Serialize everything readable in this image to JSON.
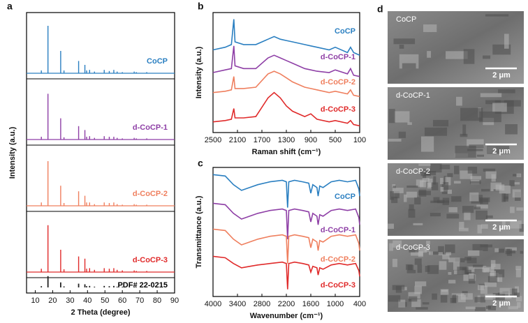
{
  "chart_data": [
    {
      "type": "xrd",
      "panel": "a",
      "xlabel": "2 Theta (degree)",
      "ylabel": "Intensity (a.u.)",
      "xlim": [
        5,
        90
      ],
      "xticks": [
        10,
        20,
        30,
        40,
        50,
        60,
        70,
        80,
        90
      ],
      "ylim": [
        0,
        100
      ],
      "x": [
        13.5,
        17.3,
        24.6,
        26.5,
        34.9,
        38.5,
        39.5,
        41.2,
        44,
        49.6,
        52.5,
        55.1,
        57,
        60,
        66.8,
        68,
        74
      ],
      "series": [
        {
          "name": "CoCP",
          "color": "#2a7fc1",
          "values": [
            5,
            85,
            40,
            5,
            22,
            15,
            5,
            6,
            3,
            6,
            4,
            6,
            3,
            2,
            3,
            2,
            2
          ]
        },
        {
          "name": "d-CoCP-1",
          "color": "#8e3fa6",
          "values": [
            5,
            82,
            38,
            4,
            24,
            17,
            5,
            6,
            3,
            6,
            5,
            5,
            3,
            2,
            3,
            2,
            2
          ]
        },
        {
          "name": "d-CoCP-2",
          "color": "#ef7f5e",
          "values": [
            6,
            80,
            36,
            5,
            26,
            18,
            6,
            6,
            3,
            6,
            5,
            6,
            3,
            2,
            3,
            2,
            2
          ]
        },
        {
          "name": "d-CoCP-3",
          "color": "#e02a2a",
          "values": [
            6,
            84,
            40,
            5,
            28,
            24,
            6,
            7,
            4,
            7,
            6,
            7,
            4,
            3,
            3,
            2,
            2
          ]
        },
        {
          "name": "PDF# 22-0215",
          "color": "#222222",
          "values": [
            10,
            90,
            40,
            8,
            30,
            25,
            10,
            12,
            6,
            12,
            10,
            12,
            6,
            5,
            6,
            4,
            4
          ]
        }
      ]
    },
    {
      "type": "line",
      "panel": "b",
      "xlabel": "Raman shift (cm⁻¹)",
      "ylabel": "Intensity (a.u.)",
      "xlim": [
        2500,
        100
      ],
      "xticks": [
        2500,
        2100,
        1700,
        1300,
        900,
        500,
        100
      ],
      "ylim": [
        10,
        100
      ],
      "x": [
        2500,
        2300,
        2200,
        2160,
        2140,
        2000,
        1800,
        1600,
        1500,
        1400,
        1300,
        1200,
        1000,
        900,
        800,
        600,
        500,
        300,
        250,
        200,
        100
      ],
      "series": [
        {
          "name": "CoCP",
          "color": "#2a7fc1",
          "values": [
            72,
            74,
            76,
            95,
            78,
            76,
            76,
            80,
            82,
            80,
            79,
            78,
            76,
            75,
            74,
            72,
            74,
            70,
            74,
            70,
            68
          ]
        },
        {
          "name": "d-CoCP-1",
          "color": "#8e3fa6",
          "values": [
            55,
            57,
            58,
            75,
            60,
            58,
            58,
            66,
            68,
            66,
            64,
            62,
            58,
            57,
            56,
            55,
            57,
            54,
            58,
            53,
            52
          ]
        },
        {
          "name": "d-CoCP-2",
          "color": "#ef7f5e",
          "values": [
            40,
            41,
            42,
            52,
            43,
            43,
            44,
            54,
            56,
            54,
            51,
            48,
            44,
            43,
            42,
            40,
            41,
            39,
            42,
            38,
            37
          ]
        },
        {
          "name": "d-CoCP-3",
          "color": "#e02a2a",
          "values": [
            18,
            19,
            20,
            28,
            21,
            21,
            22,
            36,
            40,
            36,
            30,
            26,
            22,
            24,
            20,
            18,
            19,
            17,
            19,
            16,
            15
          ]
        }
      ]
    },
    {
      "type": "line",
      "panel": "c",
      "xlabel": "Wavenumber (cm⁻¹)",
      "ylabel": "Transmittance (a.u.)",
      "xlim": [
        4000,
        400
      ],
      "xticks": [
        4000,
        3400,
        2800,
        2200,
        1600,
        1000,
        400
      ],
      "ylim": [
        10,
        100
      ],
      "x": [
        4000,
        3700,
        3500,
        3300,
        3100,
        2900,
        2600,
        2300,
        2200,
        2170,
        2140,
        2000,
        1800,
        1650,
        1600,
        1550,
        1450,
        1420,
        1380,
        1300,
        1100,
        900,
        700,
        500,
        420,
        400
      ],
      "series": [
        {
          "name": "CoCP",
          "color": "#2a7fc1",
          "values": [
            95,
            94,
            88,
            84,
            86,
            88,
            90,
            91,
            90,
            72,
            90,
            91,
            90,
            89,
            82,
            88,
            86,
            80,
            87,
            86,
            90,
            91,
            90,
            91,
            85,
            80
          ]
        },
        {
          "name": "d-CoCP-1",
          "color": "#8e3fa6",
          "values": [
            75,
            74,
            68,
            64,
            66,
            68,
            70,
            71,
            70,
            50,
            70,
            71,
            70,
            69,
            62,
            68,
            66,
            60,
            67,
            66,
            70,
            71,
            70,
            71,
            65,
            60
          ]
        },
        {
          "name": "d-CoCP-2",
          "color": "#ef7f5e",
          "values": [
            57,
            56,
            50,
            46,
            48,
            50,
            52,
            53,
            52,
            33,
            52,
            53,
            52,
            51,
            44,
            50,
            48,
            42,
            49,
            48,
            52,
            53,
            52,
            53,
            47,
            42
          ]
        },
        {
          "name": "d-CoCP-3",
          "color": "#e02a2a",
          "values": [
            38,
            37,
            33,
            30,
            31,
            32,
            33,
            34,
            33,
            15,
            33,
            34,
            33,
            32,
            27,
            31,
            30,
            25,
            30,
            29,
            32,
            33,
            32,
            33,
            28,
            24
          ]
        }
      ]
    }
  ],
  "panel_d": {
    "panel": "d",
    "images": [
      {
        "label": "CoCP",
        "scale_bar": "2 μm"
      },
      {
        "label": "d-CoCP-1",
        "scale_bar": "2 μm"
      },
      {
        "label": "d-CoCP-2",
        "scale_bar": "2 μm"
      },
      {
        "label": "d-CoCP-3",
        "scale_bar": "2 μm"
      }
    ]
  }
}
